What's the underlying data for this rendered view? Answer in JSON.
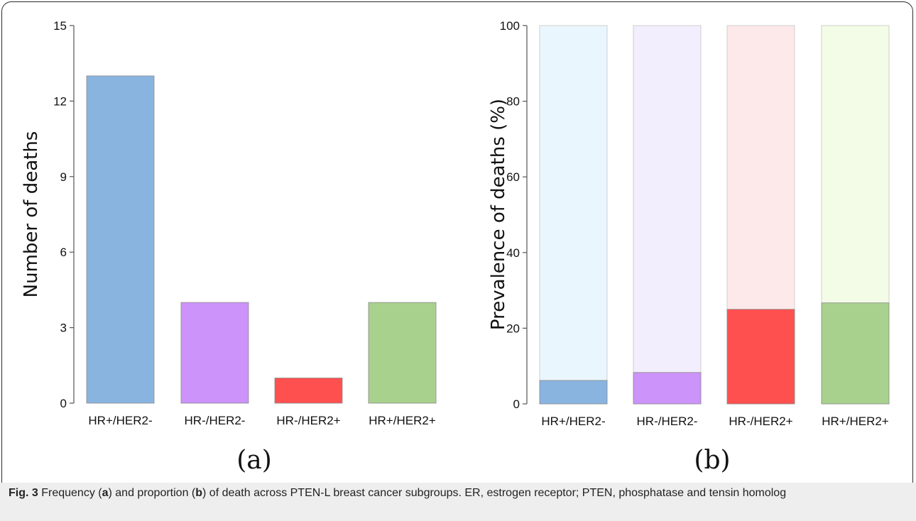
{
  "chart_data": [
    {
      "type": "bar",
      "panel_label": "(a)",
      "ylabel": "Number of deaths",
      "xlabel": "",
      "categories": [
        "HR+/HER2-",
        "HR-/HER2-",
        "HR-/HER2+",
        "HR+/HER2+"
      ],
      "values": [
        13,
        4,
        1,
        4
      ],
      "ylim": [
        0,
        15
      ],
      "yticks": [
        "0",
        "3",
        "6",
        "9",
        "12",
        "15"
      ],
      "colors": [
        "#89b4e0",
        "#cc93fa",
        "#ff5050",
        "#a8d18d"
      ],
      "grid": false
    },
    {
      "type": "bar",
      "stacked": true,
      "panel_label": "(b)",
      "ylabel": "Prevalence of deaths  (%)",
      "xlabel": "",
      "categories": [
        "HR+/HER2-",
        "HR-/HER2-",
        "HR-/HER2+",
        "HR+/HER2+"
      ],
      "values": [
        6.2,
        8.3,
        25,
        26.7
      ],
      "total": 100,
      "ylim": [
        0,
        100
      ],
      "yticks": [
        "0",
        "20",
        "40",
        "60",
        "80",
        "100"
      ],
      "colors": [
        "#89b4e0",
        "#cc93fa",
        "#ff5050",
        "#a8d18d"
      ],
      "background_colors": [
        "#eaf6fd",
        "#f3eefd",
        "#fde9ea",
        "#f3fce6"
      ],
      "grid": false
    }
  ],
  "caption": {
    "fig_label": "Fig. 3",
    "text_1": " Frequency (",
    "a": "a",
    "text_2": ") and proportion (",
    "b": "b",
    "text_3": ") of death across PTEN-L breast cancer subgroups. ER, estrogen receptor; PTEN, phosphatase and tensin homolog"
  }
}
